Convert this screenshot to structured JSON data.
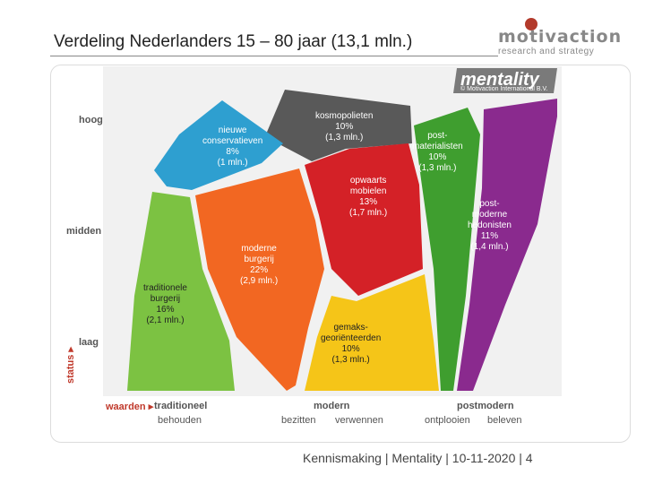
{
  "header": {
    "title": "Verdeling Nederlanders 15 – 80 jaar (13,1 mln.)",
    "logo_word": "motivaction",
    "logo_sub": "research and strategy"
  },
  "board": {
    "brand": "mentality",
    "copyright": "© Motivaction International B.V."
  },
  "axes": {
    "status_label": "status",
    "y_levels": [
      "hoog",
      "midden",
      "laag"
    ],
    "waarden_label": "waarden",
    "x_groups": [
      {
        "title": "traditioneel",
        "subs": [
          "behouden"
        ]
      },
      {
        "title": "modern",
        "subs": [
          "bezitten",
          "verwennen"
        ]
      },
      {
        "title": "postmodern",
        "subs": [
          "ontplooien",
          "beleven"
        ]
      }
    ]
  },
  "segments": [
    {
      "id": "kosmopolieten",
      "lines": [
        "kosmopolieten",
        "10%",
        "(1,3 mln.)"
      ],
      "color": "#595959",
      "share_pct": 10,
      "population_mln": 1.3
    },
    {
      "id": "nieuwe-conservatieven",
      "lines": [
        "nieuwe",
        "conservatieven",
        "8%",
        "(1 mln.)"
      ],
      "color": "#2e9fd0",
      "share_pct": 8,
      "population_mln": 1.0
    },
    {
      "id": "postmaterialisten",
      "lines": [
        "post-",
        "materialisten",
        "10%",
        "(1,3 mln.)"
      ],
      "color": "#3f9e2f",
      "share_pct": 10,
      "population_mln": 1.3
    },
    {
      "id": "opwaarts-mobielen",
      "lines": [
        "opwaarts",
        "mobielen",
        "13%",
        "(1,7 mln.)"
      ],
      "color": "#d42127",
      "share_pct": 13,
      "population_mln": 1.7
    },
    {
      "id": "postmoderne-hedonisten",
      "lines": [
        "post-",
        "moderne",
        "hedonisten",
        "11%",
        "(1,4 mln.)"
      ],
      "color": "#8a2a8e",
      "share_pct": 11,
      "population_mln": 1.4
    },
    {
      "id": "moderne-burgerij",
      "lines": [
        "moderne",
        "burgerij",
        "22%",
        "(2,9 mln.)"
      ],
      "color": "#f26722",
      "share_pct": 22,
      "population_mln": 2.9
    },
    {
      "id": "traditionele-burgerij",
      "lines": [
        "traditionele",
        "burgerij",
        "16%",
        "(2,1 mln.)"
      ],
      "color": "#7cc242",
      "share_pct": 16,
      "population_mln": 2.1
    },
    {
      "id": "gemaksgeorienteerden",
      "lines": [
        "gemaks-",
        "georiënteerden",
        "10%",
        "(1,3 mln.)"
      ],
      "color": "#f5c518",
      "share_pct": 10,
      "population_mln": 1.3
    }
  ],
  "footer": {
    "text": "Kennismaking | Mentality | 10-11-2020 |  4"
  }
}
